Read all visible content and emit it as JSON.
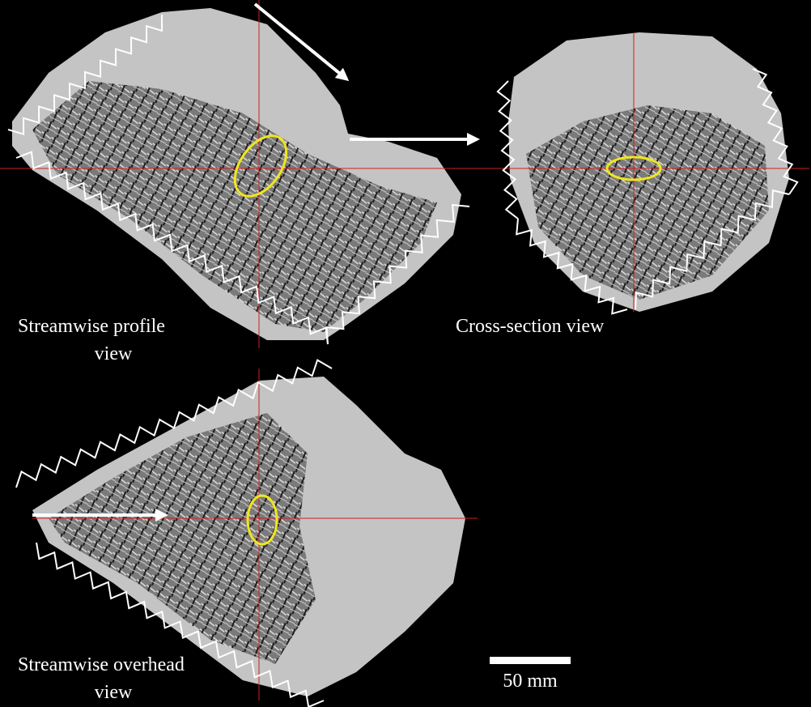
{
  "panels": [
    {
      "label": [
        "Streamwise profile",
        "view"
      ]
    },
    {
      "label": [
        "Cross-section view"
      ]
    },
    {
      "label": [
        "Streamwise overhead",
        "view"
      ]
    }
  ],
  "scale_bar": {
    "label": "50 mm"
  }
}
